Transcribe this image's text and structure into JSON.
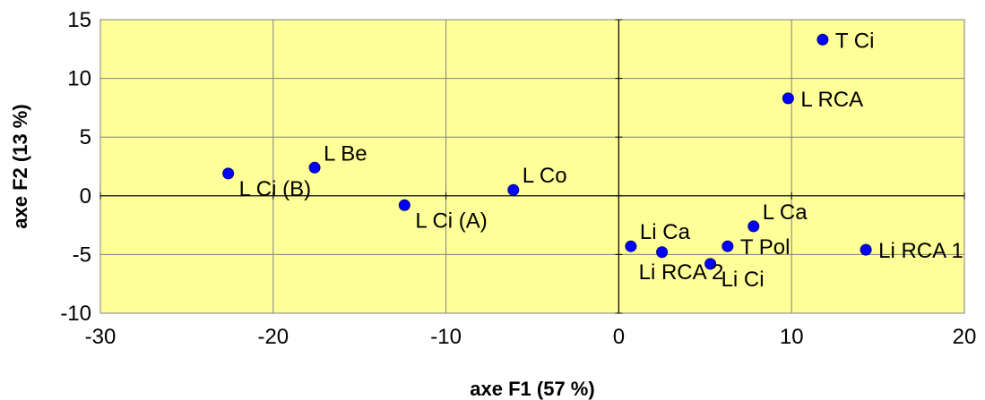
{
  "chart_data": {
    "type": "scatter",
    "title": "",
    "xlabel": "axe F1 (57 %)",
    "ylabel": "axe F2 (13 %)",
    "xlim": [
      -30,
      20
    ],
    "ylim": [
      -10,
      15
    ],
    "xticks": [
      -30,
      -20,
      -10,
      0,
      10,
      20
    ],
    "yticks": [
      -10,
      -5,
      0,
      5,
      10,
      15
    ],
    "grid": true,
    "legend": "none",
    "colors": {
      "plot_background": "#ffff99",
      "point_fill": "#0000ff",
      "point_stroke": "#000080",
      "grid": "#808080"
    },
    "points": [
      {
        "label": "T Ci",
        "x": 11.8,
        "y": 13.3,
        "label_pos": "right"
      },
      {
        "label": "L RCA",
        "x": 9.8,
        "y": 8.3,
        "label_pos": "right"
      },
      {
        "label": "L Be",
        "x": -17.6,
        "y": 2.4,
        "label_pos": "upper-right"
      },
      {
        "label": "L Ci (B)",
        "x": -22.6,
        "y": 1.9,
        "label_pos": "lower-right"
      },
      {
        "label": "L Co",
        "x": -6.1,
        "y": 0.5,
        "label_pos": "upper-right"
      },
      {
        "label": "L Ci (A)",
        "x": -12.4,
        "y": -0.8,
        "label_pos": "lower-right"
      },
      {
        "label": "Li Ca",
        "x": 0.7,
        "y": -4.3,
        "label_pos": "upper-right"
      },
      {
        "label": "Li RCA 2",
        "x": 2.5,
        "y": -4.8,
        "label_pos": "below-left"
      },
      {
        "label": "Li Ci",
        "x": 5.3,
        "y": -5.8,
        "label_pos": "lower-right"
      },
      {
        "label": "T Pol",
        "x": 6.3,
        "y": -4.3,
        "label_pos": "right"
      },
      {
        "label": "L Ca",
        "x": 7.8,
        "y": -2.6,
        "label_pos": "upper-right"
      },
      {
        "label": "Li RCA 1",
        "x": 14.3,
        "y": -4.6,
        "label_pos": "right"
      }
    ]
  }
}
